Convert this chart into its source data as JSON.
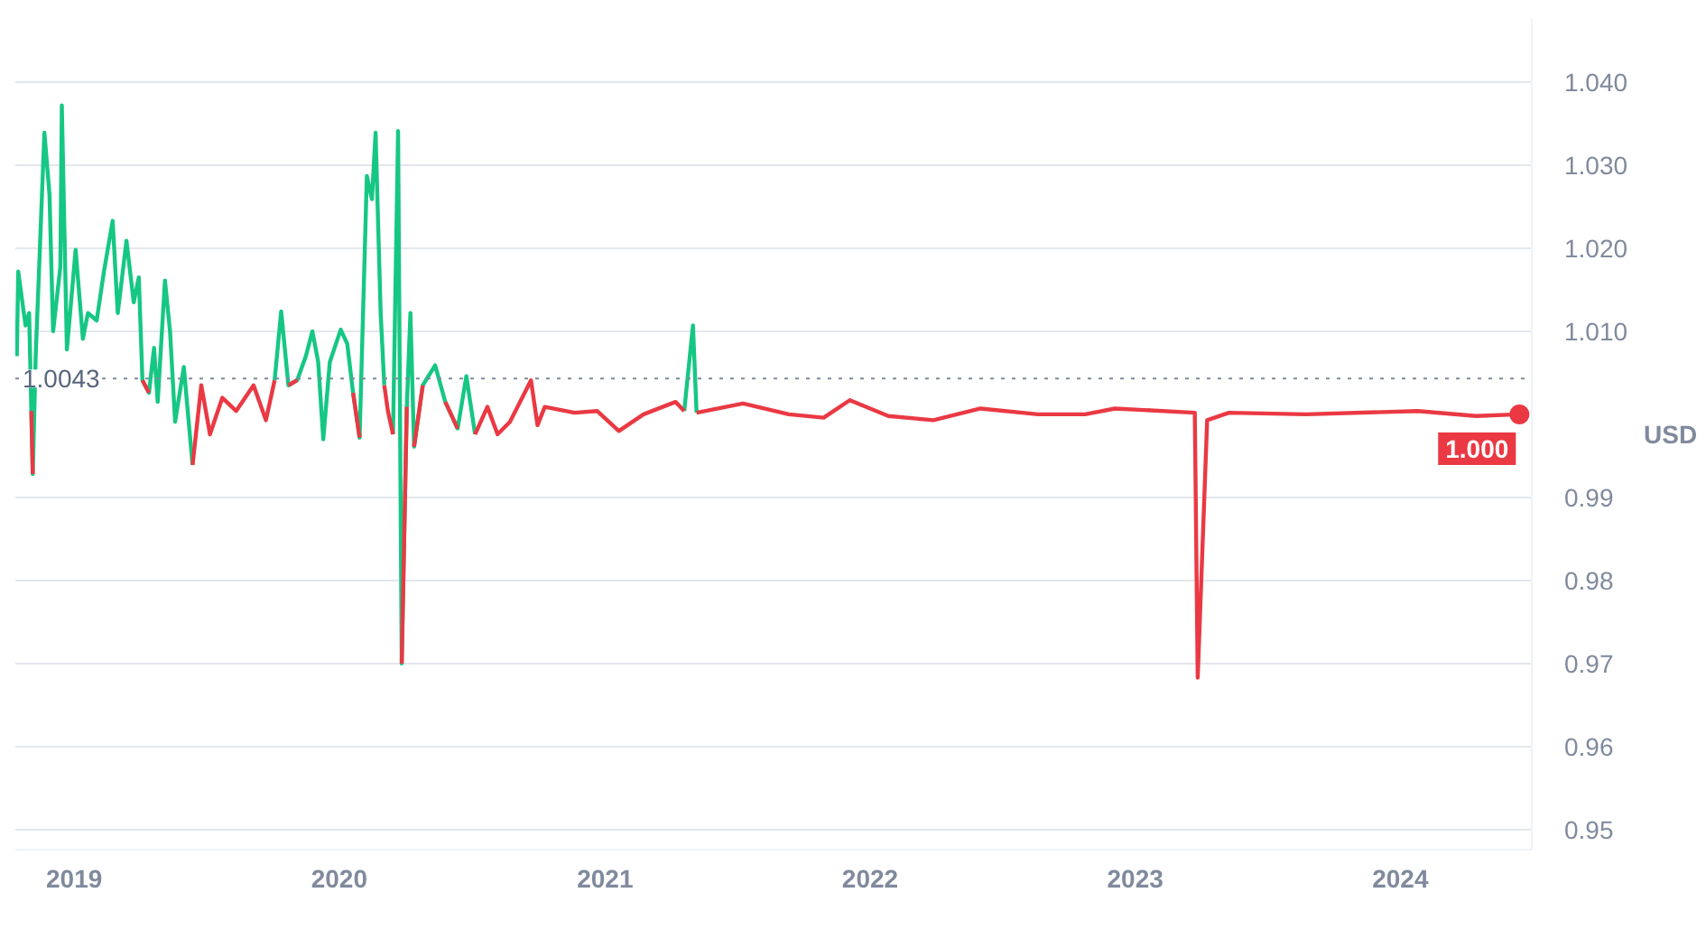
{
  "chart_data": {
    "type": "line",
    "x": [
      "2018-10-14",
      "2018-10-16",
      "2018-10-26",
      "2018-10-31",
      "2018-11-03",
      "2018-11-05",
      "2018-11-09",
      "2018-11-21",
      "2018-11-28",
      "2018-12-03",
      "2018-12-13",
      "2018-12-15",
      "2018-12-22",
      "2019-01-03",
      "2019-01-13",
      "2019-01-20",
      "2019-02-01",
      "2019-02-11",
      "2019-02-23",
      "2019-03-02",
      "2019-03-14",
      "2019-03-24",
      "2019-03-31",
      "2019-04-05",
      "2019-04-14",
      "2019-04-21",
      "2019-04-26",
      "2019-05-06",
      "2019-05-13",
      "2019-05-20",
      "2019-06-01",
      "2019-06-13",
      "2019-06-25",
      "2019-07-07",
      "2019-07-24",
      "2019-08-12",
      "2019-09-05",
      "2019-09-22",
      "2019-10-04",
      "2019-10-13",
      "2019-10-23",
      "2019-11-04",
      "2019-11-16",
      "2019-11-25",
      "2019-12-03",
      "2019-12-10",
      "2019-12-19",
      "2020-01-03",
      "2020-01-12",
      "2020-01-20",
      "2020-01-29",
      "2020-02-08",
      "2020-02-15",
      "2020-02-20",
      "2020-02-27",
      "2020-03-03",
      "2020-03-08",
      "2020-03-15",
      "2020-03-22",
      "2020-03-27",
      "2020-04-03",
      "2020-04-08",
      "2020-04-13",
      "2020-04-25",
      "2020-05-12",
      "2020-05-26",
      "2020-06-12",
      "2020-06-24",
      "2020-07-06",
      "2020-07-23",
      "2020-08-06",
      "2020-08-23",
      "2020-09-21",
      "2020-09-30",
      "2020-10-10",
      "2020-11-20",
      "2020-12-21",
      "2021-01-20",
      "2021-02-23",
      "2021-04-08",
      "2021-04-20",
      "2021-05-02",
      "2021-05-07",
      "2021-07-10",
      "2021-09-11",
      "2021-10-29",
      "2021-12-04",
      "2022-01-26",
      "2022-03-29",
      "2022-06-02",
      "2022-08-20",
      "2022-10-24",
      "2022-12-04",
      "2023-03-24",
      "2023-03-28",
      "2023-04-10",
      "2023-05-10",
      "2023-08-24",
      "2024-01-25",
      "2024-04-14",
      "2024-06-13"
    ],
    "series": [
      {
        "color": "#16c784",
        "values": [
          1.007,
          1.0172,
          1.0107,
          1.0122,
          1.0004,
          0.9928,
          1.007,
          1.0339,
          1.0265,
          1.01,
          1.0178,
          1.0372,
          1.0078,
          1.0198,
          1.0091,
          1.0122,
          1.0113,
          1.0172,
          1.0233,
          1.0122,
          1.0209,
          1.0135,
          1.0165,
          1.0041,
          1.0026,
          1.008,
          1.0015,
          1.0161,
          1.01,
          0.9991,
          1.0057,
          0.9939,
          null,
          null,
          null,
          null,
          null,
          null,
          1.0041,
          1.0124,
          1.0035,
          1.0041,
          1.007,
          1.01,
          1.0063,
          0.997,
          1.0063,
          1.0102,
          1.0085,
          1.0026,
          0.9972,
          1.0287,
          1.0259,
          1.0339,
          1.0122,
          1.0035,
          null,
          0.9976,
          1.0341,
          0.97,
          1.0009,
          1.0122,
          0.9961,
          1.0035,
          1.0059,
          1.0015,
          0.9983,
          1.0046,
          0.9976,
          null,
          null,
          null,
          null,
          null,
          null,
          null,
          null,
          null,
          null,
          null,
          1.0004,
          1.0107,
          1.0002,
          null,
          null,
          null,
          null,
          null,
          null,
          null,
          null,
          null,
          null,
          null,
          null,
          null,
          null,
          null,
          null,
          null,
          null
        ]
      },
      {
        "color": "#ea3943",
        "values": [
          null,
          null,
          null,
          null,
          1.0004,
          0.9928,
          null,
          null,
          null,
          null,
          null,
          null,
          null,
          null,
          null,
          null,
          null,
          null,
          null,
          null,
          null,
          null,
          null,
          1.0041,
          1.0026,
          null,
          null,
          null,
          null,
          null,
          null,
          0.9939,
          1.0035,
          0.9976,
          1.002,
          1.0004,
          1.0035,
          0.9993,
          1.0041,
          null,
          1.0035,
          1.0041,
          null,
          null,
          null,
          null,
          null,
          null,
          null,
          1.0026,
          0.9972,
          null,
          null,
          null,
          null,
          1.0035,
          1.0004,
          0.9976,
          null,
          0.97,
          1.0009,
          null,
          0.9961,
          1.0035,
          null,
          1.0015,
          0.9983,
          null,
          0.9976,
          1.0009,
          0.9976,
          0.9991,
          1.0041,
          0.9987,
          1.0009,
          1.0002,
          1.0004,
          0.998,
          1.0,
          1.0015,
          1.0004,
          null,
          1.0002,
          1.0013,
          1.0,
          0.9996,
          1.0017,
          0.9998,
          0.9993,
          1.0007,
          1.0,
          1.0,
          1.0007,
          1.0002,
          0.9683,
          0.9993,
          1.0002,
          1.0,
          1.0004,
          0.9998,
          1.0
        ]
      }
    ],
    "xlim": [
      "2018-10-12",
      "2024-06-30"
    ],
    "xticks": [
      {
        "value": "2019-01-01",
        "label": "2019"
      },
      {
        "value": "2020-01-01",
        "label": "2020"
      },
      {
        "value": "2021-01-01",
        "label": "2021"
      },
      {
        "value": "2022-01-01",
        "label": "2022"
      },
      {
        "value": "2023-01-01",
        "label": "2023"
      },
      {
        "value": "2024-01-01",
        "label": "2024"
      }
    ],
    "ylim": [
      0.9476,
      1.0476
    ],
    "yticks": [
      0.95,
      0.96,
      0.97,
      0.98,
      0.99,
      {
        "value": 1.01,
        "label": "1.010"
      },
      {
        "value": 1.02,
        "label": "1.020"
      },
      {
        "value": 1.03,
        "label": "1.030"
      },
      {
        "value": 1.04,
        "label": "1.040"
      }
    ],
    "ylabel": "USD",
    "ref_lines": [
      {
        "axis": "y",
        "value": 1.0043,
        "label": "1.0043",
        "color": "#808a9d",
        "line_style": "dotted"
      }
    ],
    "annotations": [
      {
        "text": "1.000",
        "x": "2024-06-13",
        "y": 1.0
      }
    ],
    "grid": "y",
    "line_style": "solid"
  }
}
